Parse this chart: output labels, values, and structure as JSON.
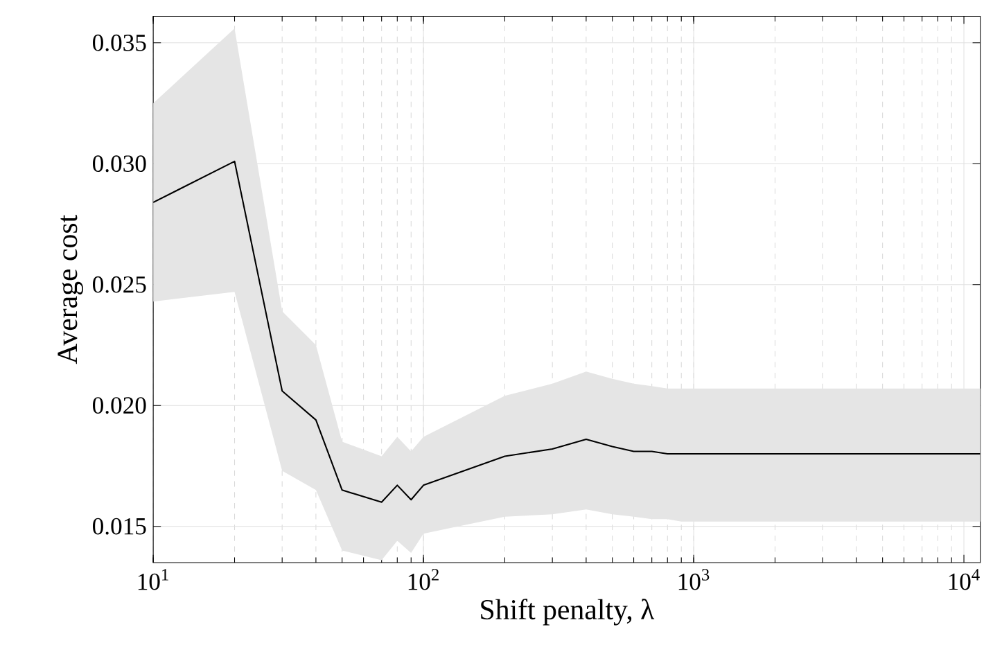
{
  "chart_data": {
    "type": "line",
    "xlabel": "Shift penalty, λ",
    "ylabel": "Average cost",
    "log": "x",
    "grid": true,
    "xlim": [
      10,
      11500
    ],
    "ylim": [
      0.0135,
      0.0361
    ],
    "xticks": [
      {
        "value": 10,
        "label": "10$^{1}$"
      },
      {
        "value": 100,
        "label": "10$^{2}$"
      },
      {
        "value": 1000,
        "label": "10$^{3}$"
      },
      {
        "value": 10000,
        "label": "10$^{4}$"
      }
    ],
    "yticks": [
      0.015,
      {
        "value": 0.02,
        "label": "0.020"
      },
      0.025,
      {
        "value": 0.03,
        "label": "0.030"
      },
      0.035
    ],
    "series": [
      {
        "color": "#000000",
        "x": [
          10,
          20,
          30,
          40,
          50,
          70,
          80,
          90,
          100,
          200,
          300,
          400,
          500,
          600,
          700,
          800,
          900,
          1000,
          2000,
          3000,
          4000,
          5000,
          6000,
          7000,
          8000,
          9000,
          10000,
          11500
        ],
        "values": [
          0.0284,
          0.0301,
          0.0206,
          0.0194,
          0.0165,
          0.016,
          0.0167,
          0.0161,
          0.0167,
          0.0179,
          0.0182,
          0.0186,
          0.0183,
          0.0181,
          0.0181,
          0.018,
          0.018,
          0.018,
          0.018,
          0.018,
          0.018,
          0.018,
          0.018,
          0.018,
          0.018,
          0.018,
          0.018,
          0.018
        ],
        "lower": [
          0.0243,
          0.0247,
          0.0173,
          0.0165,
          0.014,
          0.0136,
          0.0144,
          0.0139,
          0.0147,
          0.0154,
          0.0155,
          0.0157,
          0.0155,
          0.0154,
          0.0153,
          0.0153,
          0.0152,
          0.0152,
          0.0152,
          0.0152,
          0.0152,
          0.0152,
          0.0152,
          0.0152,
          0.0152,
          0.0152,
          0.0152,
          0.0152
        ],
        "upper": [
          0.0325,
          0.0356,
          0.0239,
          0.0225,
          0.0185,
          0.0179,
          0.0187,
          0.0181,
          0.0187,
          0.0204,
          0.0209,
          0.0214,
          0.0211,
          0.0209,
          0.0208,
          0.0207,
          0.0207,
          0.0207,
          0.0207,
          0.0207,
          0.0207,
          0.0207,
          0.0207,
          0.0207,
          0.0207,
          0.0207,
          0.0207,
          0.0207
        ]
      }
    ]
  }
}
